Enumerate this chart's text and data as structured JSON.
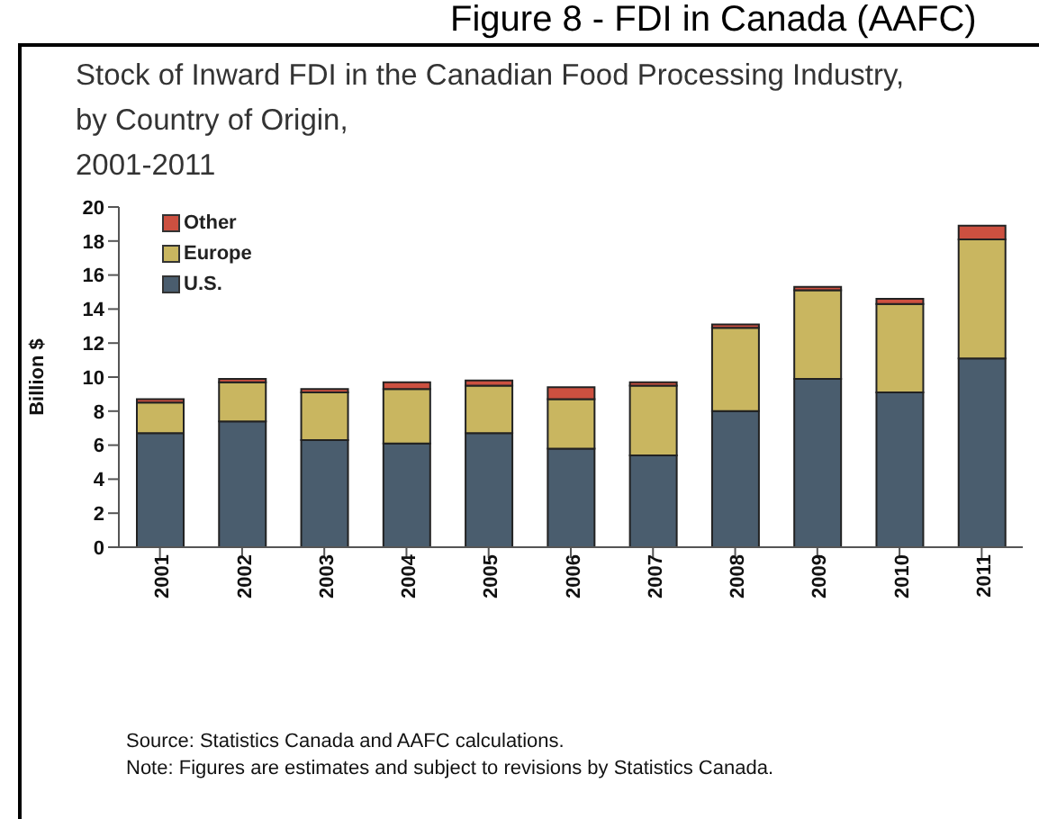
{
  "chart_data": {
    "type": "bar",
    "title": "Stock of  Inward FDI in the Canadian Food Processing Industry,\nby Country of Origin,\n2001-2011",
    "categories": [
      "2001",
      "2002",
      "2003",
      "2004",
      "2005",
      "2006",
      "2007",
      "2008",
      "2009",
      "2010",
      "2011"
    ],
    "series": [
      {
        "name": "U.S.",
        "color": "#4a5d6e",
        "values": [
          6.7,
          7.4,
          6.3,
          6.1,
          6.7,
          5.8,
          5.4,
          8.0,
          9.9,
          9.1,
          11.1
        ]
      },
      {
        "name": "Europe",
        "color": "#c9b660",
        "values": [
          1.8,
          2.3,
          2.8,
          3.2,
          2.8,
          2.9,
          4.1,
          4.9,
          5.2,
          5.2,
          7.0
        ]
      },
      {
        "name": "Other",
        "color": "#cc5040",
        "values": [
          0.2,
          0.2,
          0.2,
          0.4,
          0.3,
          0.7,
          0.2,
          0.2,
          0.2,
          0.3,
          0.8
        ]
      }
    ],
    "stacked": true,
    "ylabel": "Billion $",
    "ylim": [
      0,
      20
    ],
    "yticks": [
      0,
      2,
      4,
      6,
      8,
      10,
      12,
      14,
      16,
      18,
      20
    ],
    "legend": "top left",
    "grid": false,
    "annotations": [
      "Figure 8 - FDI in Canada (AAFC)",
      "Source: Statistics Canada and AAFC calculations.",
      "Note: Figures are estimates and subject to revisions by Statistics Canada."
    ]
  }
}
